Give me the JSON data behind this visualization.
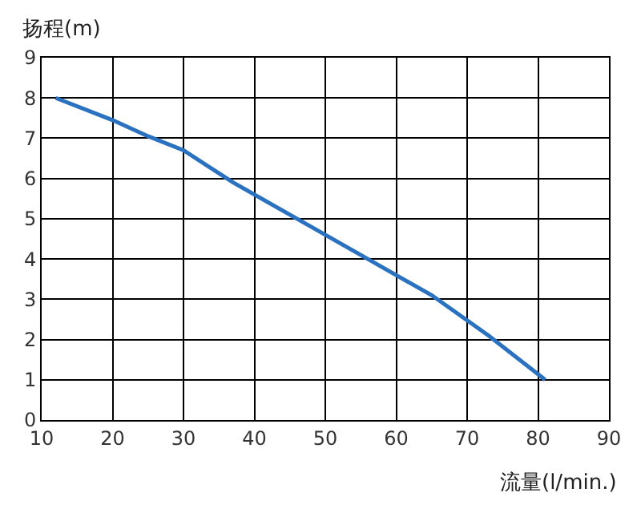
{
  "chart_data": {
    "type": "line",
    "xlabel": "流量(l/min.)",
    "ylabel": "扬程(m)",
    "x": [
      12,
      20,
      25,
      30,
      37,
      47,
      56,
      65,
      73,
      81
    ],
    "series": [
      {
        "color": "#2a72c0",
        "values": [
          8.0,
          7.45,
          7.05,
          6.7,
          5.9,
          4.9,
          4.0,
          3.1,
          2.1,
          1.0
        ]
      }
    ],
    "xlim": [
      10,
      90
    ],
    "xticks": [
      10,
      20,
      30,
      40,
      50,
      60,
      70,
      80,
      90
    ],
    "ylim": [
      0,
      9
    ],
    "yticks": [
      0,
      1,
      2,
      3,
      4,
      5,
      6,
      7,
      8,
      9
    ],
    "grid": true,
    "marker": "none",
    "line_style": "solid"
  }
}
